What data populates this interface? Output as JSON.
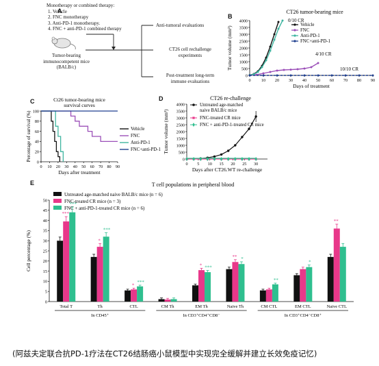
{
  "colors": {
    "vehicle": "#111111",
    "fnc": "#9b4fb8",
    "antipd1": "#3fb5a0",
    "combo": "#1f3f8f",
    "naive": "#111111",
    "fnc_cr": "#e8388a",
    "combo_cr": "#2fbf8f"
  },
  "panelA": {
    "label": "A",
    "therapy_lines": [
      "Monotherapy or combined therapy:",
      "1. Vehicle",
      "2. FNC monotherapy",
      "3. Anti-PD-1 monotherapy.",
      "4. FNC + anti-PD-1 combined therapy"
    ],
    "mice_lines": [
      "Tumor-bearing",
      "immunocompetent mice",
      "(BALB/c)"
    ],
    "eval1": "Anti-tumoral evaluations",
    "eval2_lines": [
      "CT26 cell rechallenge",
      "experiments"
    ],
    "eval3_lines": [
      "Post-treatment long-term",
      "immune evaluations"
    ]
  },
  "chart_data": [
    {
      "id": "B",
      "type": "line",
      "title": "CT26 tumor-bearing mice",
      "xlabel": "Days of treatment",
      "ylabel": "Tumor volume (mm³)",
      "xlim": [
        0,
        90
      ],
      "ylim": [
        0,
        4000
      ],
      "xticks": [
        0,
        10,
        20,
        30,
        40,
        50,
        60,
        70,
        80,
        90
      ],
      "yticks": [
        0,
        500,
        1000,
        1500,
        2000,
        2500,
        3000,
        3500,
        4000
      ],
      "series": [
        {
          "name": "Vehicle",
          "x": [
            0,
            3,
            6,
            9,
            12,
            15,
            18,
            21
          ],
          "y": [
            20,
            100,
            300,
            700,
            1300,
            2100,
            3000,
            3900
          ]
        },
        {
          "name": "FNC",
          "x": [
            0,
            5,
            10,
            15,
            20,
            25,
            30,
            35,
            40,
            45,
            50
          ],
          "y": [
            0,
            50,
            150,
            250,
            350,
            400,
            420,
            450,
            500,
            600,
            900
          ]
        },
        {
          "name": "Anti-PD-1",
          "x": [
            0,
            3,
            6,
            9,
            12,
            15,
            18,
            21,
            24
          ],
          "y": [
            20,
            80,
            250,
            600,
            1100,
            1800,
            2600,
            3400,
            4000
          ]
        },
        {
          "name": "FNC+anti-PD-1",
          "x": [
            0,
            10,
            20,
            30,
            40,
            50,
            60,
            70,
            80,
            90
          ],
          "y": [
            0,
            0,
            0,
            0,
            0,
            0,
            0,
            0,
            0,
            0
          ]
        }
      ],
      "annotations": [
        "0/10 CR",
        "4/10 CR",
        "10/10 CR"
      ]
    },
    {
      "id": "C",
      "type": "line",
      "title_lines": [
        "Ct26 tumor-bearing mice",
        "survival curves"
      ],
      "xlabel": "Days after treatment",
      "ylabel": "Percentage of survival (%)",
      "xlim": [
        0,
        90
      ],
      "ylim": [
        0,
        100
      ],
      "xticks": [
        0,
        10,
        20,
        30,
        40,
        50,
        60,
        70,
        80,
        90
      ],
      "yticks": [
        0,
        20,
        40,
        60,
        80,
        100
      ],
      "series": [
        {
          "name": "Vehicle",
          "x": [
            0,
            10,
            12,
            14,
            16,
            18,
            20,
            22
          ],
          "y": [
            100,
            100,
            80,
            60,
            40,
            20,
            10,
            0
          ]
        },
        {
          "name": "FNC",
          "x": [
            0,
            30,
            35,
            40,
            45,
            55,
            60,
            70,
            90
          ],
          "y": [
            100,
            100,
            90,
            80,
            70,
            60,
            50,
            40,
            40
          ]
        },
        {
          "name": "Anti-PD-1",
          "x": [
            0,
            14,
            17,
            20,
            23,
            26
          ],
          "y": [
            100,
            100,
            70,
            50,
            20,
            0
          ]
        },
        {
          "name": "FNC+anti-PD-1",
          "x": [
            0,
            90
          ],
          "y": [
            100,
            100
          ]
        }
      ]
    },
    {
      "id": "D",
      "type": "line",
      "title": "CT26 re-challenge",
      "xlabel": "Days after CT26.WT re-challenge",
      "ylabel": "Tumor volume (mm³)",
      "xlim": [
        0,
        35
      ],
      "ylim": [
        0,
        4000
      ],
      "xticks": [
        0,
        5,
        10,
        15,
        20,
        25,
        30
      ],
      "yticks": [
        0,
        500,
        1000,
        1500,
        2000,
        2500,
        3000,
        3500,
        4000
      ],
      "series": [
        {
          "name": "Untreated age-matched naive BALB/c mice",
          "x": [
            0,
            3,
            6,
            9,
            12,
            15,
            18,
            21,
            24,
            27,
            30
          ],
          "y": [
            0,
            10,
            40,
            90,
            180,
            330,
            600,
            1000,
            1600,
            2200,
            3100
          ]
        },
        {
          "name": "FNC-treated CR mice",
          "x": [
            0,
            3,
            6,
            9,
            12,
            15,
            18,
            21,
            24,
            27,
            30
          ],
          "y": [
            0,
            0,
            0,
            0,
            0,
            0,
            0,
            0,
            0,
            0,
            0
          ]
        },
        {
          "name": "FNC + anti-PD-1-treated CR mice",
          "x": [
            0,
            3,
            6,
            9,
            12,
            15,
            18,
            21,
            24,
            27,
            30
          ],
          "y": [
            0,
            0,
            0,
            0,
            0,
            0,
            0,
            0,
            0,
            0,
            0
          ]
        }
      ]
    },
    {
      "id": "E",
      "type": "bar",
      "title": "T cell populations in peripheral blood",
      "ylabel": "Cell percentage (%)",
      "ylim": [
        0,
        50
      ],
      "yticks": [
        0,
        5,
        10,
        15,
        20,
        25,
        30,
        35,
        40,
        45,
        50
      ],
      "categories": [
        "Total T",
        "Th",
        "CTL",
        "CM Th",
        "EM Th",
        "Naive Th",
        "CM CTL",
        "EM CTL",
        "Naive CTL"
      ],
      "groups": [
        {
          "label": "In CD45⁺",
          "categories": [
            0,
            2
          ]
        },
        {
          "label": "In CD3⁺CD4⁺CD8⁻",
          "categories": [
            3,
            5
          ]
        },
        {
          "label": "In CD3⁺CD4⁻CD8⁺",
          "categories": [
            6,
            8
          ]
        }
      ],
      "series": [
        {
          "name": "Untreated age-matched naive BALB/c mice (n = 6)",
          "values": [
            30,
            22,
            5.5,
            1.2,
            8,
            16,
            5.5,
            13,
            22
          ]
        },
        {
          "name": "FNC-treated CR mice (n = 3)",
          "values": [
            39.5,
            27,
            6,
            1.0,
            15.5,
            19.5,
            6,
            16,
            36
          ]
        },
        {
          "name": "FNC + anti-PD-1-treated CR mice (n = 6)",
          "values": [
            44,
            32,
            7.5,
            1.2,
            14.5,
            18.5,
            8.5,
            17,
            27
          ]
        }
      ],
      "stars": [
        [
          "",
          "***",
          "***"
        ],
        [
          "",
          "*",
          "***"
        ],
        [
          "",
          "*",
          "***"
        ],
        [
          "",
          "",
          ""
        ],
        [
          "",
          "*",
          "***"
        ],
        [
          "",
          "**",
          "*"
        ],
        [
          "",
          "",
          "**"
        ],
        [
          "",
          "",
          "*"
        ],
        [
          "",
          "**",
          ""
        ]
      ]
    }
  ],
  "caption": "(阿兹夫定联合抗PD-1疗法在CT26结肠癌小鼠模型中实现完全缓解并建立长效免疫记忆)"
}
